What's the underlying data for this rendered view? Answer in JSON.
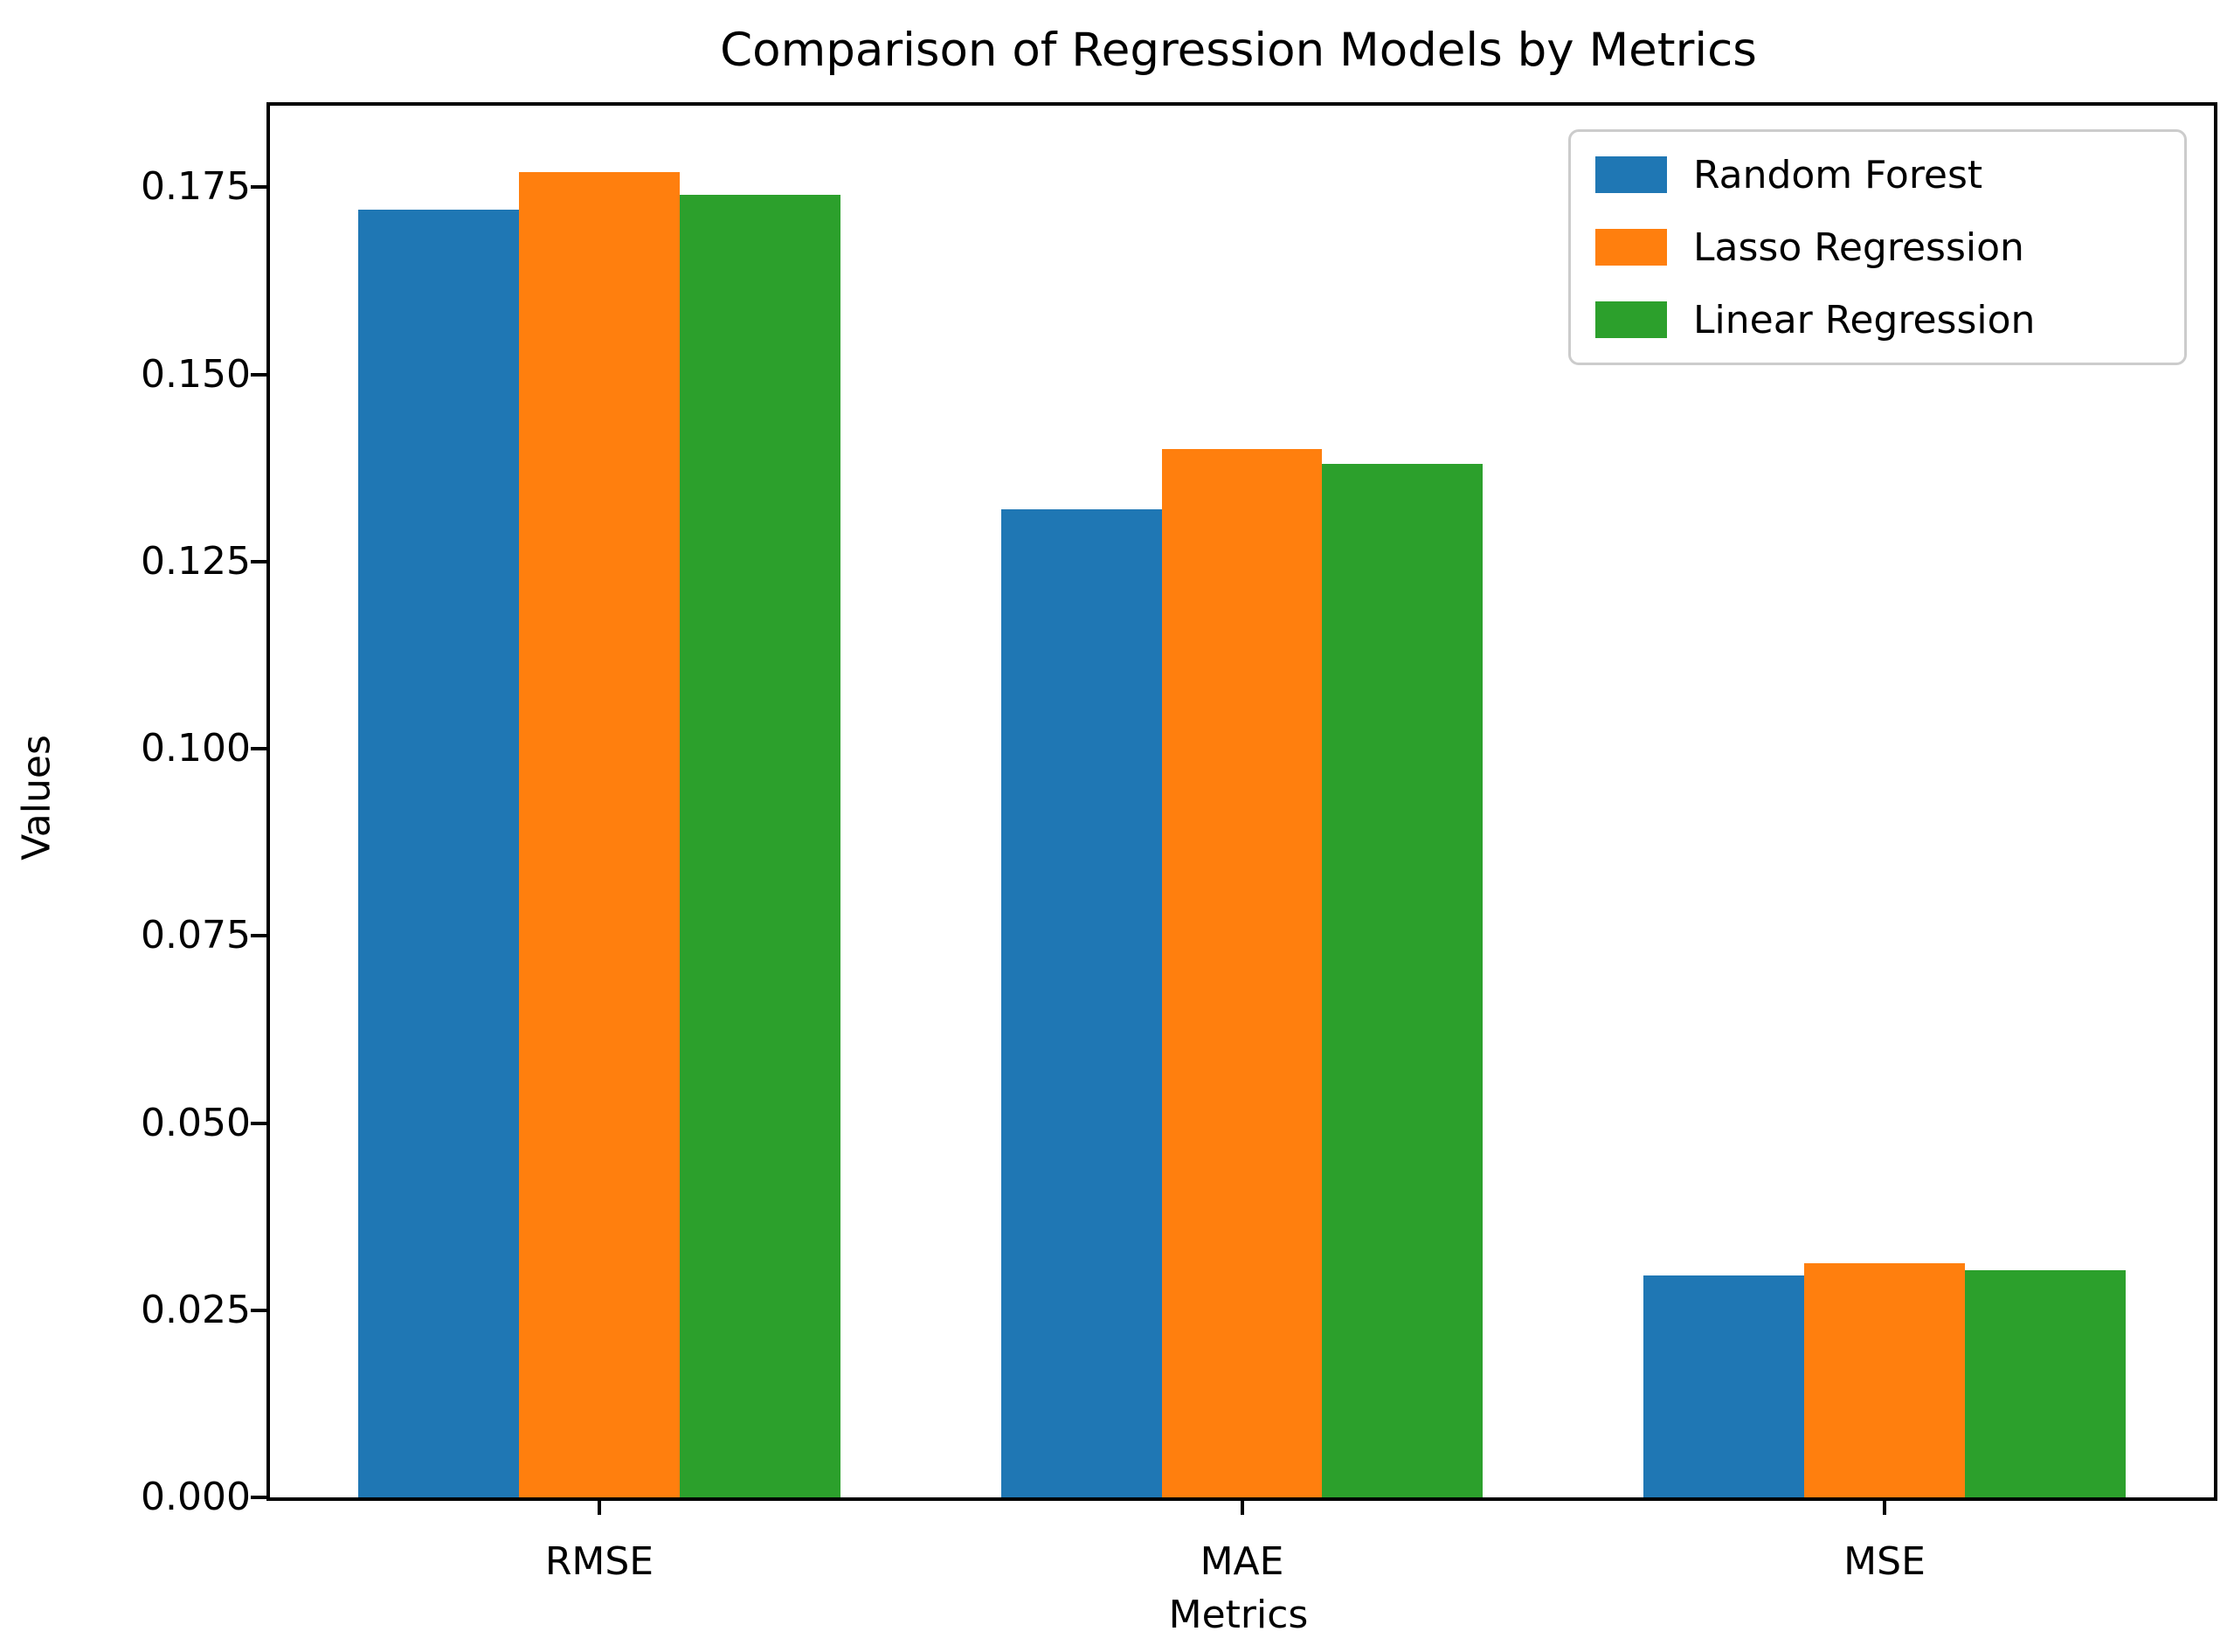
{
  "figure": {
    "background": "#ffffff",
    "spine_color": "#000000"
  },
  "chart_data": {
    "type": "bar",
    "title": "Comparison of Regression Models by Metrics",
    "xlabel": "Metrics",
    "ylabel": "Values",
    "categories": [
      "RMSE",
      "MAE",
      "MSE"
    ],
    "series": [
      {
        "name": "Random Forest",
        "color": "#1f77b4",
        "values": [
          0.172,
          0.132,
          0.0296
        ]
      },
      {
        "name": "Lasso Regression",
        "color": "#ff7f0e",
        "values": [
          0.177,
          0.14,
          0.0313
        ]
      },
      {
        "name": "Linear Regression",
        "color": "#2ca02c",
        "values": [
          0.174,
          0.138,
          0.0303
        ]
      }
    ],
    "bar_width": 0.25,
    "xlim": [
      -0.5125,
      2.5125
    ],
    "ylim": [
      0,
      0.1859
    ],
    "yticks": [
      {
        "value": 0.0,
        "label": "0.000"
      },
      {
        "value": 0.025,
        "label": "0.025"
      },
      {
        "value": 0.05,
        "label": "0.050"
      },
      {
        "value": 0.075,
        "label": "0.075"
      },
      {
        "value": 0.1,
        "label": "0.100"
      },
      {
        "value": 0.125,
        "label": "0.125"
      },
      {
        "value": 0.15,
        "label": "0.150"
      },
      {
        "value": 0.175,
        "label": "0.175"
      }
    ],
    "grid": false,
    "legend": {
      "position": "upper right",
      "entries": [
        "Random Forest",
        "Lasso Regression",
        "Linear Regression"
      ]
    }
  }
}
